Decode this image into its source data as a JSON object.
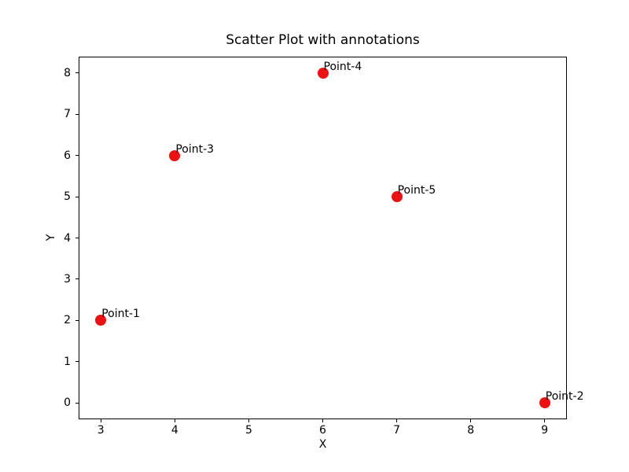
{
  "chart_data": {
    "type": "scatter",
    "title": "Scatter Plot with annotations",
    "xlabel": "X",
    "ylabel": "Y",
    "xlim": [
      2.7,
      9.3
    ],
    "ylim": [
      -0.4,
      8.4
    ],
    "xticks": [
      3,
      4,
      5,
      6,
      7,
      8,
      9
    ],
    "yticks": [
      0,
      1,
      2,
      3,
      4,
      5,
      6,
      7,
      8
    ],
    "grid": false,
    "legend": null,
    "marker_color": "#ee1111",
    "marker_size_px": 14,
    "text_color": "#000000",
    "spine_color": "#000000",
    "points": [
      {
        "label": "Point-1",
        "x": 3,
        "y": 2
      },
      {
        "label": "Point-2",
        "x": 9,
        "y": 0
      },
      {
        "label": "Point-3",
        "x": 4,
        "y": 6
      },
      {
        "label": "Point-4",
        "x": 6,
        "y": 8
      },
      {
        "label": "Point-5",
        "x": 7,
        "y": 5
      }
    ]
  }
}
